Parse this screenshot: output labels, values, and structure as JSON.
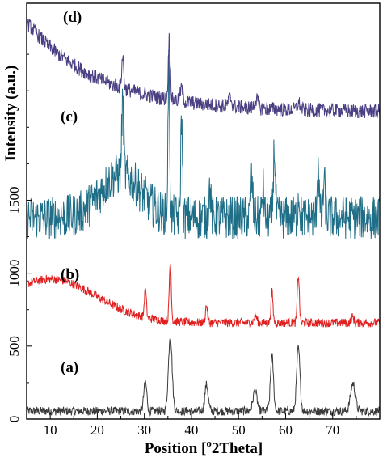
{
  "chart_data": {
    "type": "line",
    "xlabel": "Position [°2Theta]",
    "xlabel_parts": {
      "pre": "Position [",
      "sup": "o",
      "post": "2Theta]"
    },
    "ylabel": "Intensity (a.u.)",
    "xlim": [
      5,
      80
    ],
    "x_ticks": [
      10,
      20,
      30,
      40,
      50,
      60,
      70
    ],
    "y_ticks": [
      0,
      500,
      1000,
      1500
    ],
    "ylim": [
      0,
      2850
    ],
    "grid": false,
    "series": [
      {
        "name": "(a)",
        "color": "#3a3a3a",
        "baseline": 55,
        "noise": 30,
        "offset": 0,
        "peaks": [
          [
            30.2,
            200,
            0.45
          ],
          [
            35.5,
            520,
            0.55
          ],
          [
            43.2,
            180,
            0.5
          ],
          [
            53.5,
            140,
            0.6
          ],
          [
            57.1,
            380,
            0.45
          ],
          [
            62.7,
            430,
            0.5
          ],
          [
            74.3,
            190,
            0.7
          ]
        ]
      },
      {
        "name": "(b)",
        "color": "#e02020",
        "baseline": 0,
        "noise": 30,
        "offset": 660,
        "bump": {
          "amp": 300,
          "center": 10,
          "width": 14
        },
        "peaks": [
          [
            30.2,
            190,
            0.3
          ],
          [
            35.5,
            400,
            0.3
          ],
          [
            43.2,
            120,
            0.3
          ],
          [
            53.6,
            50,
            0.4
          ],
          [
            57.1,
            210,
            0.3
          ],
          [
            62.7,
            330,
            0.3
          ],
          [
            74.2,
            40,
            0.4
          ]
        ]
      },
      {
        "name": "(c)",
        "color": "#1f6e87",
        "baseline": 0,
        "noise": 150,
        "offset": 1380,
        "bump": {
          "amp": 300,
          "center": 25,
          "width": 6
        },
        "peaks": [
          [
            25.4,
            500,
            0.3
          ],
          [
            35.2,
            1050,
            0.25
          ],
          [
            37.9,
            700,
            0.25
          ],
          [
            43.9,
            200,
            0.3
          ],
          [
            52.8,
            260,
            0.3
          ],
          [
            55.2,
            200,
            0.3
          ],
          [
            57.6,
            470,
            0.3
          ],
          [
            62.8,
            150,
            0.3
          ],
          [
            66.9,
            380,
            0.3
          ],
          [
            68.2,
            250,
            0.3
          ]
        ]
      },
      {
        "name": "(d)",
        "color": "#4a3f82",
        "baseline": 0,
        "noise": 50,
        "offset": 2100,
        "trend": {
          "start": 620,
          "end": 5,
          "rate": 0.065
        },
        "peaks": [
          [
            25.4,
            220,
            0.3
          ],
          [
            35.3,
            430,
            0.3
          ],
          [
            37.9,
            90,
            0.4
          ],
          [
            48.2,
            60,
            0.5
          ],
          [
            53.8,
            60,
            0.5
          ],
          [
            62.8,
            45,
            0.5
          ]
        ]
      }
    ]
  }
}
